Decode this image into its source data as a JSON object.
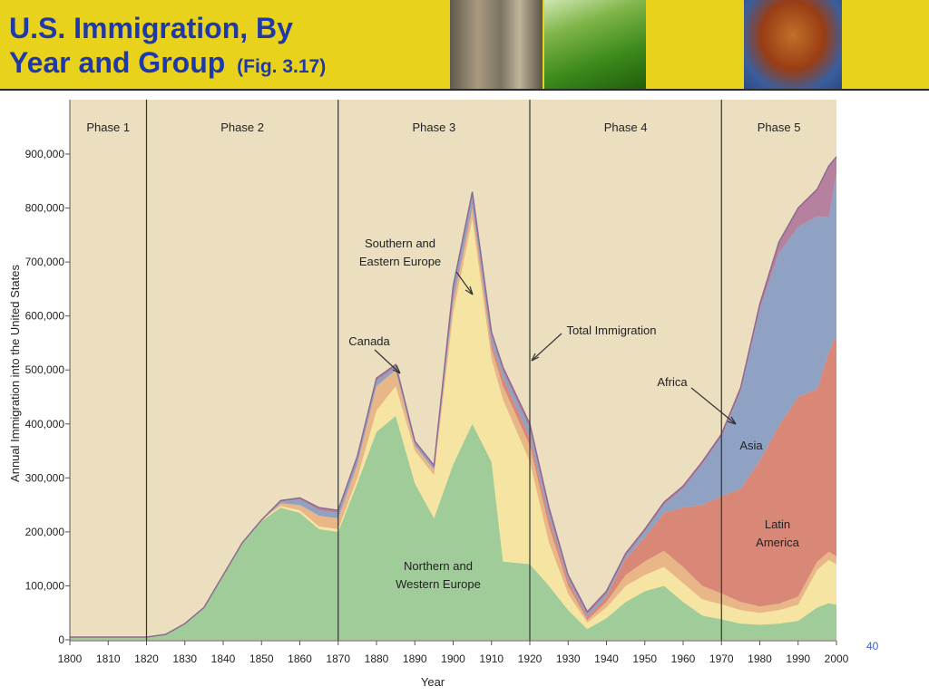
{
  "slide": {
    "title_line1": "U.S. Immigration, By",
    "title_line2": "Year and Group",
    "fig_label": "(Fig. 3.17)",
    "page_number": "40"
  },
  "colors": {
    "header_bg": "#e8d21c",
    "title": "#1f39a8",
    "plot_bg": "#ecdfbf",
    "northern_western_europe": "#9fcc98",
    "southern_eastern_europe": "#f6e5a2",
    "canada": "#e9b787",
    "latin_america": "#d98877",
    "asia": "#8fa2c4",
    "africa": "#b5819e"
  },
  "chart_data": {
    "type": "area",
    "stacked": true,
    "xlabel": "Year",
    "ylabel": "Annual Immigration into the United States",
    "xlim": [
      1800,
      2000
    ],
    "ylim": [
      0,
      900000
    ],
    "x_ticks": [
      1800,
      1810,
      1820,
      1830,
      1840,
      1850,
      1860,
      1870,
      1880,
      1890,
      1900,
      1910,
      1920,
      1930,
      1940,
      1950,
      1960,
      1970,
      1980,
      1990,
      2000
    ],
    "y_ticks": [
      {
        "value": 0,
        "label": "0"
      },
      {
        "value": 100000,
        "label": "100,000"
      },
      {
        "value": 200000,
        "label": "200,000"
      },
      {
        "value": 300000,
        "label": "300,000"
      },
      {
        "value": 400000,
        "label": "400,000"
      },
      {
        "value": 500000,
        "label": "500,000"
      },
      {
        "value": 600000,
        "label": "600,000"
      },
      {
        "value": 700000,
        "label": "700,000"
      },
      {
        "value": 800000,
        "label": "800,000"
      },
      {
        "value": 900000,
        "label": "900,000"
      }
    ],
    "grid": false,
    "phases": [
      {
        "label": "Phase 1",
        "start": 1800,
        "end": 1820
      },
      {
        "label": "Phase 2",
        "start": 1820,
        "end": 1870
      },
      {
        "label": "Phase 3",
        "start": 1870,
        "end": 1920
      },
      {
        "label": "Phase 4",
        "start": 1920,
        "end": 1970
      },
      {
        "label": "Phase 5",
        "start": 1970,
        "end": 2000
      }
    ],
    "x": [
      1800,
      1820,
      1825,
      1830,
      1835,
      1840,
      1845,
      1850,
      1855,
      1860,
      1865,
      1870,
      1875,
      1880,
      1885,
      1890,
      1895,
      1900,
      1905,
      1910,
      1913,
      1920,
      1925,
      1930,
      1935,
      1940,
      1945,
      1950,
      1955,
      1960,
      1965,
      1970,
      1975,
      1980,
      1985,
      1990,
      1995,
      1998,
      2000
    ],
    "series": [
      {
        "name": "Northern and Western Europe",
        "values": [
          5000,
          5000,
          10000,
          30000,
          60000,
          120000,
          180000,
          220000,
          245000,
          235000,
          205000,
          200000,
          290000,
          385000,
          415000,
          290000,
          225000,
          325000,
          400000,
          330000,
          145000,
          140000,
          100000,
          55000,
          20000,
          40000,
          70000,
          90000,
          100000,
          70000,
          45000,
          38000,
          30000,
          28000,
          30000,
          35000,
          60000,
          68000,
          65000
        ]
      },
      {
        "name": "Southern and Eastern Europe",
        "values": [
          0,
          0,
          0,
          0,
          0,
          0,
          0,
          2000,
          3000,
          5000,
          5000,
          5000,
          10000,
          40000,
          55000,
          60000,
          80000,
          280000,
          380000,
          190000,
          300000,
          190000,
          80000,
          30000,
          12000,
          20000,
          30000,
          30000,
          35000,
          35000,
          30000,
          28000,
          25000,
          22000,
          25000,
          30000,
          70000,
          80000,
          75000
        ]
      },
      {
        "name": "Canada",
        "values": [
          0,
          0,
          0,
          0,
          0,
          0,
          0,
          0,
          5000,
          10000,
          20000,
          20000,
          25000,
          45000,
          30000,
          10000,
          10000,
          20000,
          20000,
          20000,
          25000,
          30000,
          30000,
          15000,
          5000,
          10000,
          20000,
          25000,
          30000,
          30000,
          25000,
          20000,
          15000,
          12000,
          12000,
          15000,
          15000,
          15000,
          15000
        ]
      },
      {
        "name": "Latin America",
        "values": [
          0,
          0,
          0,
          0,
          0,
          0,
          0,
          0,
          0,
          0,
          0,
          0,
          0,
          0,
          0,
          0,
          0,
          5000,
          5000,
          10000,
          15000,
          15000,
          15000,
          10000,
          5000,
          10000,
          30000,
          45000,
          70000,
          110000,
          150000,
          180000,
          210000,
          270000,
          330000,
          370000,
          320000,
          370000,
          410000
        ]
      },
      {
        "name": "Asia",
        "values": [
          0,
          0,
          0,
          0,
          0,
          0,
          0,
          0,
          3000,
          10000,
          10000,
          10000,
          10000,
          10000,
          5000,
          5000,
          5000,
          20000,
          20000,
          15000,
          12000,
          15000,
          10000,
          5000,
          5000,
          5000,
          5000,
          10000,
          15000,
          35000,
          75000,
          110000,
          180000,
          280000,
          320000,
          315000,
          320000,
          250000,
          300000
        ]
      },
      {
        "name": "Africa",
        "values": [
          0,
          0,
          0,
          0,
          0,
          0,
          0,
          0,
          2000,
          3000,
          5000,
          5000,
          5000,
          5000,
          5000,
          3000,
          3000,
          5000,
          5000,
          5000,
          8000,
          10000,
          10000,
          5000,
          5000,
          5000,
          5000,
          5000,
          5000,
          5000,
          5000,
          5000,
          7000,
          10000,
          20000,
          35000,
          50000,
          95000,
          30000
        ]
      }
    ],
    "annotations": [
      {
        "text": "Southern and Eastern Europe",
        "lines": [
          "Southern and",
          "Eastern Europe"
        ]
      },
      {
        "text": "Canada",
        "lines": [
          "Canada"
        ]
      },
      {
        "text": "Total Immigration",
        "lines": [
          "Total Immigration"
        ]
      },
      {
        "text": "Africa",
        "lines": [
          "Africa"
        ]
      },
      {
        "text": "Asia",
        "lines": [
          "Asia"
        ]
      },
      {
        "text": "Latin America",
        "lines": [
          "Latin",
          "America"
        ]
      },
      {
        "text": "Northern and Western Europe",
        "lines": [
          "Northern and",
          "Western Europe"
        ]
      }
    ]
  }
}
